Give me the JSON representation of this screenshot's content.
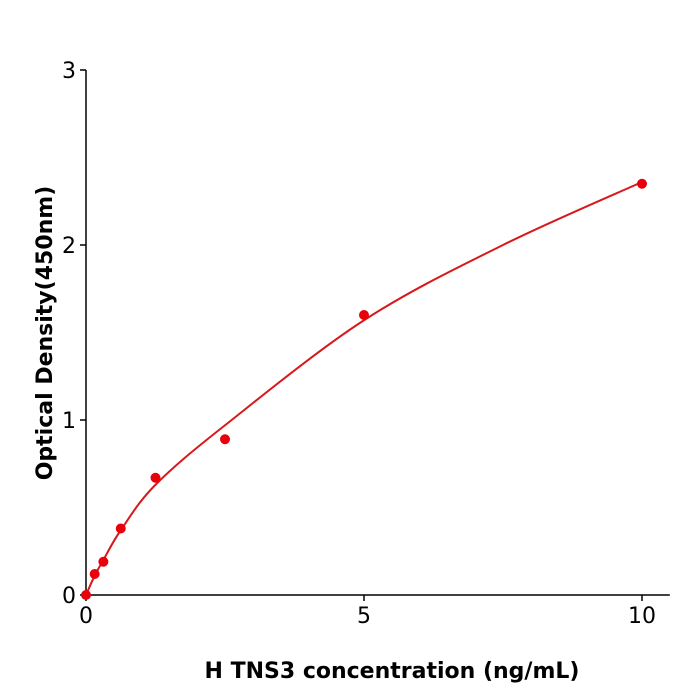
{
  "chart_data": {
    "type": "scatter",
    "title": "",
    "xlabel": "H  TNS3 concentration (ng/mL)",
    "ylabel": "Optical Density(450nm)",
    "xlim": [
      0,
      10.5
    ],
    "ylim": [
      0,
      3
    ],
    "xticks": [
      0,
      5,
      10
    ],
    "yticks": [
      0,
      1,
      2,
      3
    ],
    "grid": false,
    "color": "#e8000b",
    "curve_color": "#d7191c",
    "points": {
      "x": [
        0,
        0.156,
        0.3125,
        0.625,
        1.25,
        2.5,
        5,
        10
      ],
      "y": [
        0.0,
        0.12,
        0.19,
        0.38,
        0.67,
        0.89,
        1.6,
        2.35
      ]
    },
    "fit_curve": {
      "x": [
        0,
        0.156,
        0.3125,
        0.625,
        1.25,
        2.5,
        5,
        7.5,
        10
      ],
      "y": [
        0.0,
        0.11,
        0.2,
        0.37,
        0.63,
        0.97,
        1.57,
        2.0,
        2.36
      ]
    }
  }
}
